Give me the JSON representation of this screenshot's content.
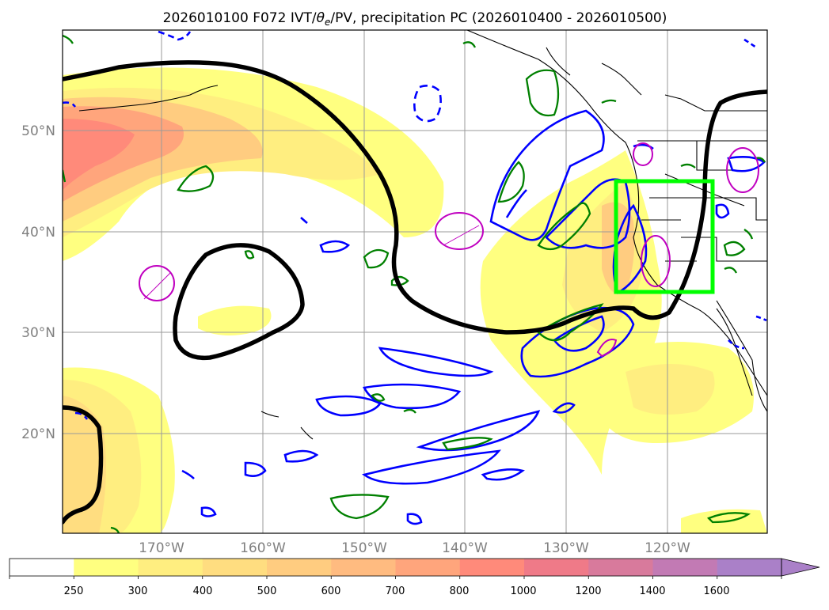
{
  "title": {
    "prefix": "2026010100 F072 IVT/",
    "theta": "θ",
    "theta_sub": "e",
    "suffix": "/PV, precipitation PC (2026010400 - 2026010500)"
  },
  "map": {
    "lon_labels": [
      "170°W",
      "160°W",
      "150°W",
      "140°W",
      "130°W",
      "120°W"
    ],
    "lat_labels": [
      "50°N",
      "40°N",
      "30°N",
      "20°N"
    ]
  },
  "colorbar": {
    "tick_labels": [
      "250",
      "300",
      "400",
      "500",
      "600",
      "700",
      "800",
      "1000",
      "1200",
      "1400",
      "1600"
    ],
    "colors": [
      "#ffffff",
      "#ffff80",
      "#ffee80",
      "#ffdd80",
      "#ffcc80",
      "#ffbb80",
      "#ffa57c",
      "#ff8a7a",
      "#ef7a88",
      "#d87a9c",
      "#c27ab4",
      "#aa80c8"
    ]
  },
  "legend_colors": {
    "ivt_high": "#ff8a80",
    "ivt_low": "#ffff80",
    "pv_contour": "#000000",
    "theta_e": "#0000ff",
    "precip": "#008000",
    "pv_anomaly": "#c000c0",
    "box": "#00ff00"
  }
}
